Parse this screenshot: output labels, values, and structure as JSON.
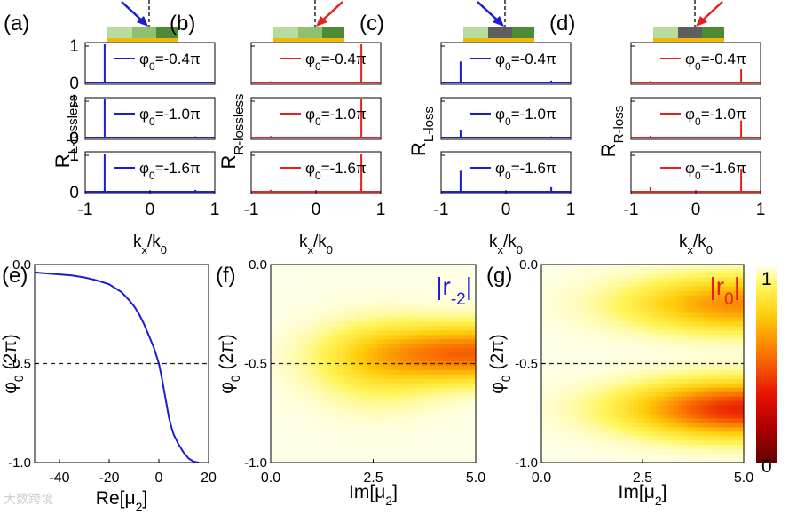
{
  "watermark": "大数跨境",
  "chart_data": {
    "type": "figure",
    "row_panels": [
      {
        "label": "(a)",
        "ylabel_main": "R",
        "ylabel_sub": "L-lossless",
        "xlabel_main": "k",
        "xlabel_sub": "x",
        "xlabel_tail": "/k",
        "xlabel_sub2": "0",
        "color": "#1c1cd6",
        "incident": "left",
        "dark_segment": false,
        "xlim": [
          -1,
          1
        ],
        "xticks": [
          "-1",
          "0",
          "1"
        ],
        "ylim": [
          0,
          1
        ],
        "yticks": [
          "0",
          "1"
        ],
        "subplots": [
          {
            "legend": "φ0=-0.4π",
            "peaks": [
              {
                "x": -0.7,
                "y": 1.0
              },
              {
                "x": 0.7,
                "y": 0.02
              }
            ]
          },
          {
            "legend": "φ0=-1.0π",
            "peaks": [
              {
                "x": -0.7,
                "y": 1.0
              },
              {
                "x": 0.7,
                "y": 0.03
              }
            ]
          },
          {
            "legend": "φ0=-1.6π",
            "peaks": [
              {
                "x": -0.7,
                "y": 1.0
              },
              {
                "x": 0.7,
                "y": 0.05
              }
            ]
          }
        ]
      },
      {
        "label": "(b)",
        "ylabel_main": "R",
        "ylabel_sub": "R-lossless",
        "xlabel_main": "k",
        "xlabel_sub": "x",
        "xlabel_tail": "/k",
        "xlabel_sub2": "0",
        "color": "#e8201c",
        "incident": "right",
        "dark_segment": false,
        "xlim": [
          -1,
          1
        ],
        "xticks": [
          "-1",
          "0",
          "1"
        ],
        "ylim": [
          0,
          1
        ],
        "yticks": [],
        "subplots": [
          {
            "legend": "φ0=-0.4π",
            "peaks": [
              {
                "x": -0.7,
                "y": 0.03
              },
              {
                "x": 0.7,
                "y": 1.0
              }
            ]
          },
          {
            "legend": "φ0=-1.0π",
            "peaks": [
              {
                "x": -0.7,
                "y": 0.04
              },
              {
                "x": 0.7,
                "y": 1.0
              }
            ]
          },
          {
            "legend": "φ0=-1.6π",
            "peaks": [
              {
                "x": -0.7,
                "y": 0.05
              },
              {
                "x": 0.7,
                "y": 1.0
              }
            ]
          }
        ]
      },
      {
        "label": "(c)",
        "ylabel_main": "R",
        "ylabel_sub": "L-loss",
        "xlabel_main": "k",
        "xlabel_sub": "x",
        "xlabel_tail": "/k",
        "xlabel_sub2": "0",
        "color": "#1c1cd6",
        "incident": "left",
        "dark_segment": true,
        "xlim": [
          -1,
          1
        ],
        "xticks": [
          "-1",
          "0",
          "1"
        ],
        "ylim": [
          0,
          1
        ],
        "yticks": [],
        "subplots": [
          {
            "legend": "φ0=-0.4π",
            "peaks": [
              {
                "x": -0.7,
                "y": 0.55
              },
              {
                "x": 0.7,
                "y": 0.05
              }
            ]
          },
          {
            "legend": "φ0=-1.0π",
            "peaks": [
              {
                "x": -0.7,
                "y": 0.2
              },
              {
                "x": 0.7,
                "y": 0.03
              }
            ]
          },
          {
            "legend": "φ0=-1.6π",
            "peaks": [
              {
                "x": -0.7,
                "y": 0.55
              },
              {
                "x": 0.7,
                "y": 0.12
              }
            ]
          }
        ]
      },
      {
        "label": "(d)",
        "ylabel_main": "R",
        "ylabel_sub": "R-loss",
        "xlabel_main": "k",
        "xlabel_sub": "x",
        "xlabel_tail": "/k",
        "xlabel_sub2": "0",
        "color": "#e8201c",
        "incident": "right",
        "dark_segment": true,
        "xlim": [
          -1,
          1
        ],
        "xticks": [
          "-1",
          "0",
          "1"
        ],
        "ylim": [
          0,
          1
        ],
        "yticks": [],
        "subplots": [
          {
            "legend": "φ0=-0.4π",
            "peaks": [
              {
                "x": -0.7,
                "y": 0.04
              },
              {
                "x": 0.7,
                "y": 0.35
              }
            ]
          },
          {
            "legend": "φ0=-1.0π",
            "peaks": [
              {
                "x": -0.7,
                "y": 0.05
              },
              {
                "x": 0.7,
                "y": 0.45
              }
            ]
          },
          {
            "legend": "φ0=-1.6π",
            "peaks": [
              {
                "x": -0.7,
                "y": 0.12
              },
              {
                "x": 0.7,
                "y": 0.6
              }
            ]
          }
        ]
      }
    ],
    "legend_prefix": "φ",
    "legend_sub": "0",
    "legend_values": [
      "=-0.4π",
      "=-1.0π",
      "=-1.6π"
    ],
    "panel_e": {
      "label": "(e)",
      "type": "line",
      "color": "#1c1cd6",
      "xlabel": "Re[μ",
      "xlabel_sub": "2",
      "xlabel_tail": "]",
      "ylabel": "φ",
      "ylabel_sub": "0",
      "ylabel_tail": " (2π)",
      "xlim": [
        -50,
        20
      ],
      "xticks": [
        "-40",
        "-20",
        "0",
        "20"
      ],
      "xtick_values": [
        -40,
        -20,
        0,
        20
      ],
      "ylim": [
        -1.0,
        0.0
      ],
      "yticks": [
        "0.0",
        "-0.5",
        "-1.0"
      ],
      "ytick_values": [
        0.0,
        -0.5,
        -1.0
      ],
      "dashed_line_y": -0.5,
      "x": [
        -50,
        -45,
        -40,
        -35,
        -30,
        -25,
        -20,
        -15,
        -12,
        -10,
        -8,
        -6,
        -5,
        -4,
        -3,
        -2,
        -1,
        0,
        1,
        2,
        3,
        4,
        5,
        6,
        8,
        10,
        12,
        14,
        16
      ],
      "y": [
        -0.04,
        -0.045,
        -0.05,
        -0.055,
        -0.065,
        -0.08,
        -0.1,
        -0.14,
        -0.18,
        -0.21,
        -0.25,
        -0.3,
        -0.33,
        -0.36,
        -0.39,
        -0.42,
        -0.46,
        -0.5,
        -0.56,
        -0.63,
        -0.7,
        -0.77,
        -0.82,
        -0.86,
        -0.91,
        -0.95,
        -0.98,
        -0.995,
        -1.0
      ]
    },
    "heatmaps": [
      {
        "label": "(f)",
        "tag": "|r",
        "tag_sub": "-2",
        "tag_tail": "|",
        "tag_color": "#1c1cd6",
        "xlabel": "Im[μ",
        "xlabel_sub": "2",
        "xlabel_tail": "]",
        "ylabel": "φ",
        "ylabel_sub": "0",
        "ylabel_tail": " (2π)",
        "xlim": [
          0,
          5
        ],
        "xticks": [
          "0.0",
          "2.5",
          "5.0"
        ],
        "xtick_values": [
          0,
          2.5,
          5
        ],
        "ylim": [
          -1.0,
          0.0
        ],
        "yticks": [
          "0.0",
          "-0.5",
          "-1.0"
        ],
        "ytick_values": [
          0.0,
          -0.5,
          -1.0
        ],
        "dashed_line_y": -0.5,
        "blobs": [
          {
            "cx": 5.0,
            "cy": -0.45,
            "sx": 2.4,
            "sy": 0.13,
            "amp": 0.48
          },
          {
            "cx": 2.6,
            "cy": -0.5,
            "sx": 1.5,
            "sy": 0.2,
            "amp": 0.15
          }
        ]
      },
      {
        "label": "(g)",
        "tag": "|r",
        "tag_sub": "0",
        "tag_tail": "|",
        "tag_color": "#e8201c",
        "xlabel": "Im[μ",
        "xlabel_sub": "2",
        "xlabel_tail": "]",
        "ylabel": "φ",
        "ylabel_sub": "0",
        "ylabel_tail": " (2π)",
        "xlim": [
          0,
          5
        ],
        "xticks": [
          "0.0",
          "2.5",
          "5.0"
        ],
        "xtick_values": [
          0,
          2.5,
          5
        ],
        "ylim": [
          -1.0,
          0.0
        ],
        "yticks": [
          "0.0",
          "-0.5",
          "-1.0"
        ],
        "ytick_values": [
          0.0,
          -0.5,
          -1.0
        ],
        "dashed_line_y": -0.5,
        "blobs": [
          {
            "cx": 5.0,
            "cy": -0.73,
            "sx": 2.6,
            "sy": 0.13,
            "amp": 0.62
          },
          {
            "cx": 5.0,
            "cy": -0.2,
            "sx": 2.6,
            "sy": 0.13,
            "amp": 0.4
          }
        ]
      }
    ],
    "colorbar": {
      "min_label": "0",
      "max_label": "1",
      "min": 0,
      "max": 1
    }
  }
}
